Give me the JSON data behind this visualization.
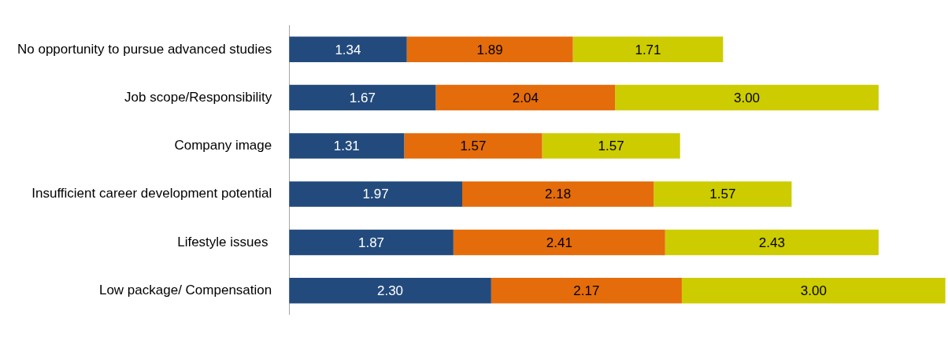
{
  "chart_data": {
    "type": "bar",
    "orientation": "horizontal",
    "stacked": true,
    "legend": false,
    "xlim": [
      0,
      7.5
    ],
    "tick_labels": "y",
    "categories": [
      "No opportunity to pursue advanced studies",
      "Job scope/Responsibility",
      "Company image",
      "Insufficient career development potential",
      "Lifestyle issues ",
      "Low package/ Compensation"
    ],
    "series": [
      {
        "color": "#234a7c",
        "values": [
          1.34,
          1.67,
          1.31,
          1.97,
          1.87,
          2.3
        ],
        "value_labels": [
          "1.34",
          "1.67",
          "1.31",
          "1.97",
          "1.87",
          "2.30"
        ]
      },
      {
        "color": "#e46c0a",
        "values": [
          1.89,
          2.04,
          1.57,
          2.18,
          2.41,
          2.17
        ],
        "value_labels": [
          "1.89",
          "2.04",
          "1.57",
          "2.18",
          "2.41",
          "2.17"
        ]
      },
      {
        "color": "#cccc00",
        "values": [
          1.71,
          3.0,
          1.57,
          1.57,
          2.43,
          3.0
        ],
        "value_labels": [
          "1.71",
          "3.00",
          "1.57",
          "1.57",
          "2.43",
          "3.00"
        ]
      }
    ]
  }
}
